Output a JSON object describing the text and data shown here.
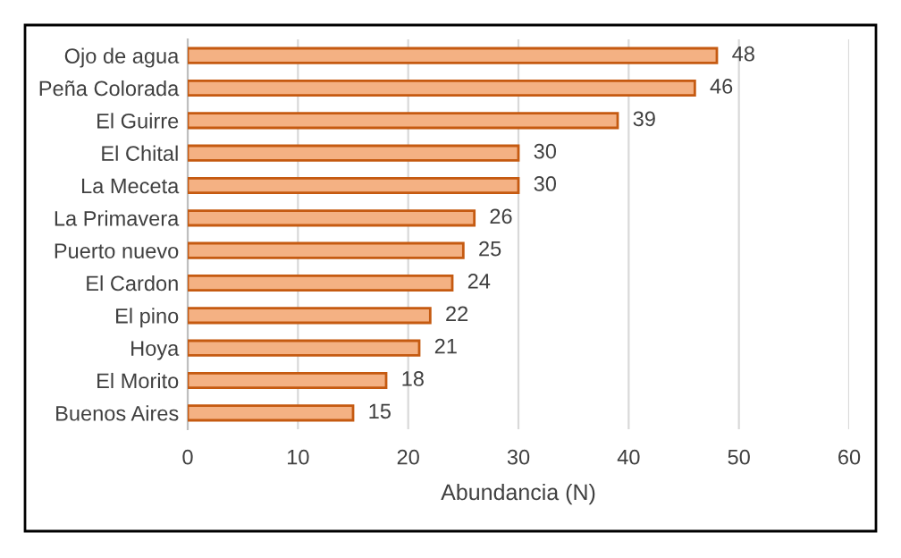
{
  "chart_data": {
    "type": "bar",
    "orientation": "horizontal",
    "xlabel": "Abundancia (N)",
    "categories": [
      "Ojo de agua",
      "Peña Colorada",
      "El Guirre",
      "El Chital",
      "La Meceta",
      "La Primavera",
      "Puerto nuevo",
      "El Cardon",
      "El pino",
      "Hoya",
      "El Morito",
      "Buenos Aires"
    ],
    "values": [
      48,
      46,
      39,
      30,
      30,
      26,
      25,
      24,
      22,
      21,
      18,
      15
    ],
    "color": "#f4b183",
    "xlim": [
      0,
      60
    ],
    "xticks": [
      0,
      10,
      20,
      30,
      40,
      50,
      60
    ],
    "grid": "x",
    "data_labels": true,
    "legend": false
  }
}
